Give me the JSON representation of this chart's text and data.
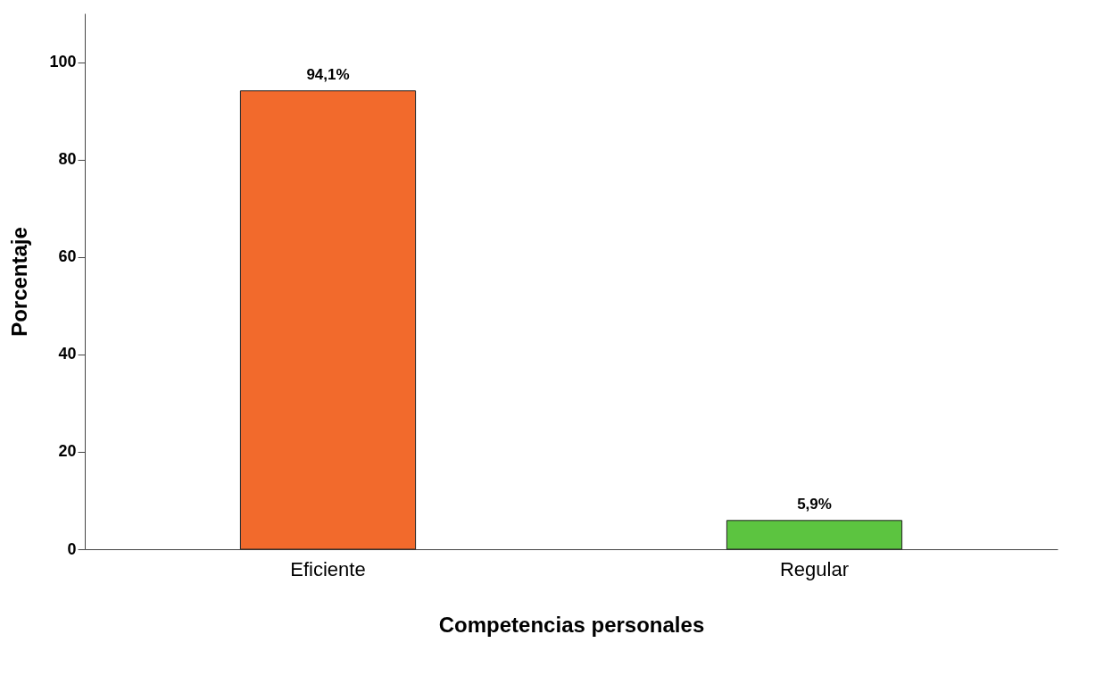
{
  "chart_data": {
    "type": "bar",
    "xlabel": "Competencias personales",
    "ylabel": "Porcentaje",
    "categories": [
      "Eficiente",
      "Regular"
    ],
    "values": [
      94.1,
      5.9
    ],
    "colors": [
      "#f26a2c",
      "#5cc440"
    ],
    "value_labels": [
      "94,1%",
      "5,9%"
    ],
    "ylim": [
      0,
      110
    ],
    "yticks": [
      0,
      20,
      40,
      60,
      80,
      100
    ],
    "grid": false
  }
}
